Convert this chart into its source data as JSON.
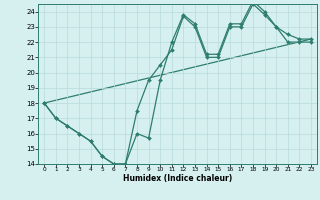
{
  "line1_x": [
    0,
    1,
    2,
    3,
    4,
    5,
    6,
    7,
    8,
    9,
    10,
    11,
    12,
    13,
    14,
    15,
    16,
    17,
    18,
    19,
    20,
    21,
    22,
    23
  ],
  "line1_y": [
    18,
    17,
    16.5,
    16,
    15.5,
    14.5,
    14,
    14,
    17.5,
    19.5,
    20.5,
    21.5,
    23.7,
    23,
    21,
    21,
    23,
    23,
    24.5,
    23.8,
    23,
    22,
    22,
    22
  ],
  "line2_x": [
    0,
    1,
    2,
    3,
    4,
    5,
    6,
    7,
    8,
    9,
    10,
    11,
    12,
    13,
    14,
    15,
    16,
    17,
    18,
    19,
    20,
    21,
    22,
    23
  ],
  "line2_y": [
    18,
    17,
    16.5,
    16,
    15.5,
    14.5,
    14,
    14,
    16,
    15.7,
    19.5,
    22,
    23.8,
    23.2,
    21.2,
    21.2,
    23.2,
    23.2,
    24.7,
    24,
    23,
    22.5,
    22.2,
    22.2
  ],
  "line3_x": [
    0,
    23
  ],
  "line3_y": [
    18,
    22.2
  ],
  "line_color": "#2e7d6e",
  "bg_color": "#d6f0f0",
  "grid_color": "#b8dada",
  "xlabel": "Humidex (Indice chaleur)",
  "ylim": [
    14,
    24.5
  ],
  "xlim": [
    -0.5,
    23.5
  ],
  "yticks": [
    14,
    15,
    16,
    17,
    18,
    19,
    20,
    21,
    22,
    23,
    24
  ],
  "xticks": [
    0,
    1,
    2,
    3,
    4,
    5,
    6,
    7,
    8,
    9,
    10,
    11,
    12,
    13,
    14,
    15,
    16,
    17,
    18,
    19,
    20,
    21,
    22,
    23
  ]
}
